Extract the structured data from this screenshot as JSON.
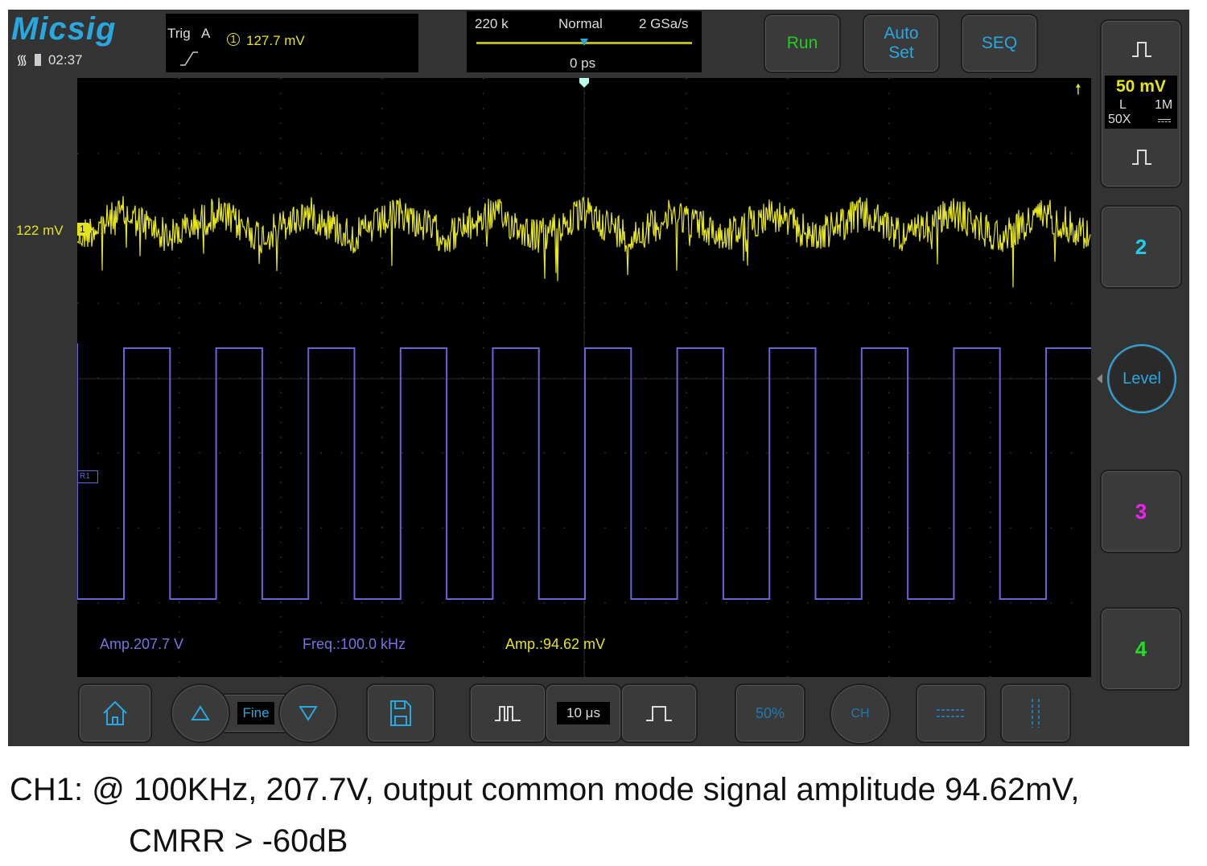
{
  "brand": "Micsig",
  "status": {
    "time": "02:37",
    "icons": [
      "wifi-icon",
      "battery-icon"
    ]
  },
  "trigger": {
    "label": "Trig",
    "source": "A",
    "channel": "1",
    "level": "127.7 mV",
    "slope": "rising-edge-icon"
  },
  "acquisition": {
    "memory": "220 k",
    "mode": "Normal",
    "sample_rate": "2 GSa/s",
    "position": "0 ps"
  },
  "buttons": {
    "run": "Run",
    "auto_set_line1": "Auto",
    "auto_set_line2": "Set",
    "seq": "SEQ",
    "level": "Level",
    "ch2": "2",
    "ch3": "3",
    "ch4": "4"
  },
  "channel1": {
    "scale": "50 mV",
    "coupling": "L",
    "impedance": "1M",
    "probe": "50X",
    "offset_label": "122 mV",
    "marker": "1"
  },
  "ref_marker": "R1",
  "measurements": [
    {
      "text": "Amp.207.7 V",
      "color": "#7a72e0"
    },
    {
      "text": "Freq.:100.0 kHz",
      "color": "#7a72e0"
    },
    {
      "text": "Amp.:94.62 mV",
      "color": "#e4e41c"
    }
  ],
  "toolbar": {
    "fine": "Fine",
    "timebase": "10 μs",
    "fifty_percent": "50%",
    "ch_label": "CH"
  },
  "colors": {
    "ch1": "#e6e61a",
    "ref": "#6a62d8",
    "accent": "#29a8e0",
    "run": "#22cc22",
    "ch2": "#22ccee",
    "ch3": "#ee22ee",
    "ch4": "#22dd22"
  },
  "caption": {
    "line1": "CH1: @ 100KHz, 207.7V, output common mode signal amplitude 94.62mV,",
    "line2": "CMRR > -60dB"
  }
}
